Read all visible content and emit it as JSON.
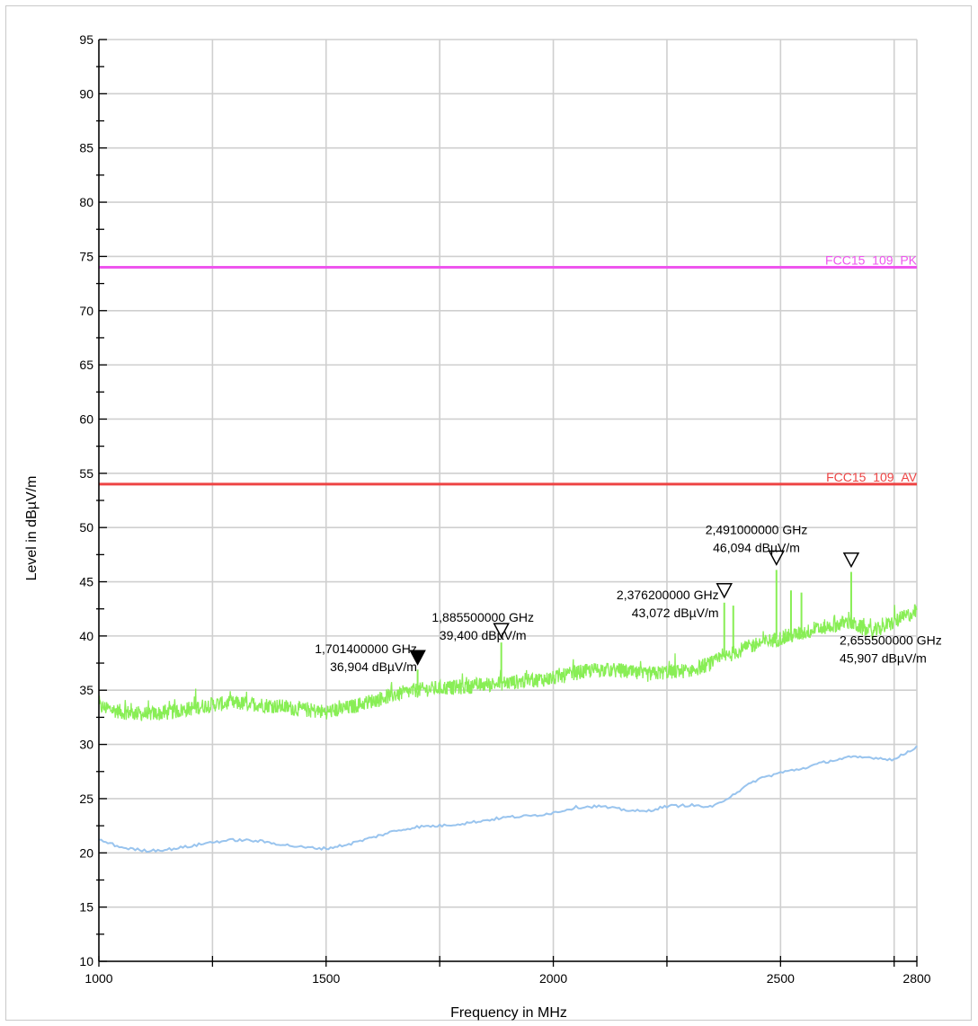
{
  "chart_data": {
    "type": "line",
    "xlabel": "Frequency in MHz",
    "ylabel": "Level in dBµV/m",
    "xlim": [
      1000,
      2800
    ],
    "ylim": [
      10,
      95
    ],
    "x_ticks": [
      "1000",
      "1500",
      "2000",
      "2500",
      "2800"
    ],
    "y_ticks": [
      "10",
      "15",
      "20",
      "25",
      "30",
      "35",
      "40",
      "45",
      "50",
      "55",
      "60",
      "65",
      "70",
      "75",
      "80",
      "85",
      "90",
      "95"
    ],
    "grid": true,
    "limit_lines": [
      {
        "name": "FCC15_109_PK",
        "value": 74,
        "color": "#ee55ee"
      },
      {
        "name": "FCC15_109_AV",
        "value": 54,
        "color": "#ee4444"
      }
    ],
    "series": [
      {
        "color": "#88ee55",
        "x": [
          1000,
          1050,
          1100,
          1150,
          1200,
          1250,
          1300,
          1350,
          1400,
          1450,
          1500,
          1550,
          1600,
          1650,
          1700,
          1750,
          1800,
          1850,
          1900,
          1950,
          2000,
          2050,
          2100,
          2150,
          2200,
          2250,
          2300,
          2350,
          2400,
          2450,
          2500,
          2550,
          2600,
          2650,
          2700,
          2750,
          2800
        ],
        "values": [
          33.5,
          33.0,
          32.8,
          32.9,
          33.3,
          33.7,
          33.8,
          33.7,
          33.5,
          33.2,
          33.0,
          33.4,
          34.0,
          34.6,
          35.0,
          35.2,
          35.3,
          35.5,
          35.7,
          35.9,
          36.1,
          36.6,
          36.9,
          36.8,
          36.4,
          36.7,
          36.8,
          37.5,
          38.5,
          39.3,
          39.8,
          40.3,
          40.8,
          41.3,
          40.3,
          41.3,
          42.3
        ],
        "peaks": [
          {
            "x": 1701.4,
            "y": 36.904
          },
          {
            "x": 1885.5,
            "y": 39.4
          },
          {
            "x": 2376.2,
            "y": 43.072
          },
          {
            "x": 2396,
            "y": 42.8
          },
          {
            "x": 2491.0,
            "y": 46.094
          },
          {
            "x": 2523,
            "y": 44.2
          },
          {
            "x": 2546,
            "y": 44.0
          },
          {
            "x": 2655.5,
            "y": 45.907
          }
        ]
      },
      {
        "color": "#99c4ee",
        "x": [
          1000,
          1050,
          1100,
          1150,
          1200,
          1250,
          1300,
          1350,
          1400,
          1450,
          1500,
          1550,
          1600,
          1650,
          1700,
          1750,
          1800,
          1850,
          1900,
          1950,
          2000,
          2050,
          2100,
          2150,
          2200,
          2250,
          2300,
          2350,
          2400,
          2450,
          2500,
          2550,
          2600,
          2650,
          2700,
          2750,
          2800
        ],
        "values": [
          21.2,
          20.5,
          20.2,
          20.3,
          20.6,
          21.0,
          21.2,
          21.1,
          20.8,
          20.5,
          20.4,
          20.8,
          21.4,
          22.0,
          22.4,
          22.5,
          22.7,
          23.0,
          23.3,
          23.4,
          23.7,
          24.2,
          24.3,
          24.0,
          23.8,
          24.3,
          24.4,
          24.2,
          25.5,
          26.8,
          27.4,
          27.8,
          28.4,
          28.8,
          28.8,
          28.6,
          29.8
        ]
      }
    ],
    "markers": [
      {
        "freq": 1701.4,
        "level": 36.904,
        "filled": true,
        "label_freq": "1,701400000 GHz",
        "label_level": "36,904 dBµV/m",
        "anchor": "end",
        "fx": 1700,
        "fy": 38.4
      },
      {
        "freq": 1885.5,
        "level": 39.4,
        "filled": false,
        "label_freq": "1,885500000 GHz",
        "label_level": "39,400 dBµV/m",
        "anchor": "middle",
        "fx": 1845,
        "fy": 41.3
      },
      {
        "freq": 2376.2,
        "level": 43.072,
        "filled": false,
        "label_freq": "2,376200000 GHz",
        "label_level": "43,072 dBµV/m",
        "anchor": "end",
        "fx": 2364,
        "fy": 43.4
      },
      {
        "freq": 2491.0,
        "level": 46.094,
        "filled": false,
        "label_freq": "2,491000000 GHz",
        "label_level": "46,094 dBµV/m",
        "anchor": "middle",
        "fx": 2447,
        "fy": 49.4
      },
      {
        "freq": 2655.5,
        "level": 45.907,
        "filled": false,
        "label_freq": "2,655500000 GHz",
        "label_level": "45,907 dBµV/m",
        "anchor": "start",
        "fx": 2630,
        "fy": 39.2
      }
    ]
  }
}
